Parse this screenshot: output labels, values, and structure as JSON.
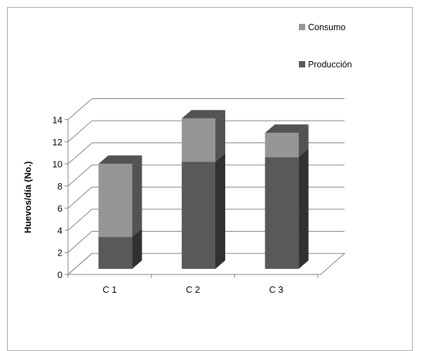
{
  "chart_data": {
    "type": "bar",
    "stacked": true,
    "three_d": true,
    "categories": [
      "C 1",
      "C 2",
      "C 3"
    ],
    "series": [
      {
        "name": "Producción",
        "values": [
          2.9,
          9.7,
          10.1
        ],
        "color": "#595959"
      },
      {
        "name": "Consumo",
        "values": [
          6.6,
          3.9,
          2.2
        ],
        "color": "#969696"
      }
    ],
    "title": "",
    "xlabel": "",
    "ylabel": "Huevos/día (No.)",
    "ylim": [
      0,
      14
    ],
    "yticks": [
      0,
      2,
      4,
      6,
      8,
      10,
      12,
      14
    ],
    "grid": true,
    "legend_position": "top-right",
    "legend_order": [
      "Consumo",
      "Producción"
    ]
  }
}
